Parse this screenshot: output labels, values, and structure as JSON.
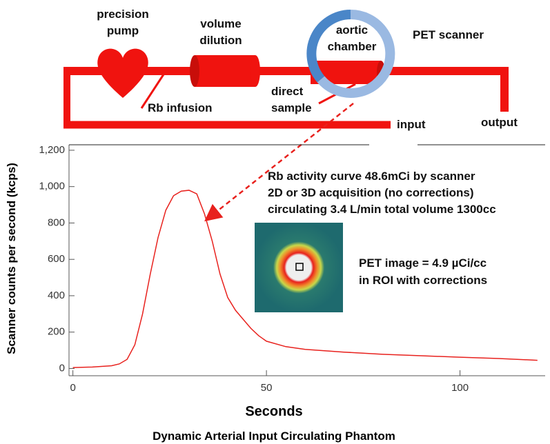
{
  "diagram": {
    "pump": [
      "precision",
      "pump"
    ],
    "dilution": [
      "volume",
      "dilution"
    ],
    "chamber": [
      "aortic",
      "chamber"
    ],
    "scanner": "PET scanner",
    "infusion": "Rb infusion",
    "sample": [
      "direct",
      "sample"
    ],
    "input": "input",
    "output": "output"
  },
  "chart_data": {
    "type": "line",
    "xlabel": "Seconds",
    "ylabel": "Scanner counts per second (kcps)",
    "annotations": [
      "Rb activity curve 48.6mCi by scanner",
      "2D or 3D acquisition (no corrections)",
      "circulating 3.4 L/min total volume 1300cc"
    ],
    "image_note": [
      "PET image = 4.9 µCi/cc",
      "in ROI with corrections"
    ],
    "x": [
      0,
      5,
      10,
      12,
      14,
      16,
      18,
      20,
      22,
      24,
      26,
      28,
      30,
      32,
      34,
      36,
      38,
      40,
      42,
      44,
      46,
      48,
      50,
      55,
      60,
      70,
      80,
      90,
      100,
      110,
      120
    ],
    "series": [
      {
        "color": "#e8211d",
        "values": [
          5,
          8,
          15,
          25,
          50,
          130,
          300,
          520,
          720,
          870,
          950,
          975,
          980,
          960,
          850,
          700,
          520,
          390,
          320,
          270,
          220,
          180,
          150,
          120,
          105,
          90,
          78,
          70,
          62,
          55,
          45
        ]
      }
    ],
    "xlim": [
      -1,
      122
    ],
    "ylim": [
      -40,
      1230
    ],
    "xticks": [
      0,
      50,
      100
    ],
    "yticks": [
      0,
      200,
      400,
      600,
      800,
      {
        "value": 1000,
        "label": "1,000"
      },
      {
        "value": 1200,
        "label": "1,200"
      }
    ]
  },
  "caption": "Dynamic Arterial Input Circulating Phantom"
}
